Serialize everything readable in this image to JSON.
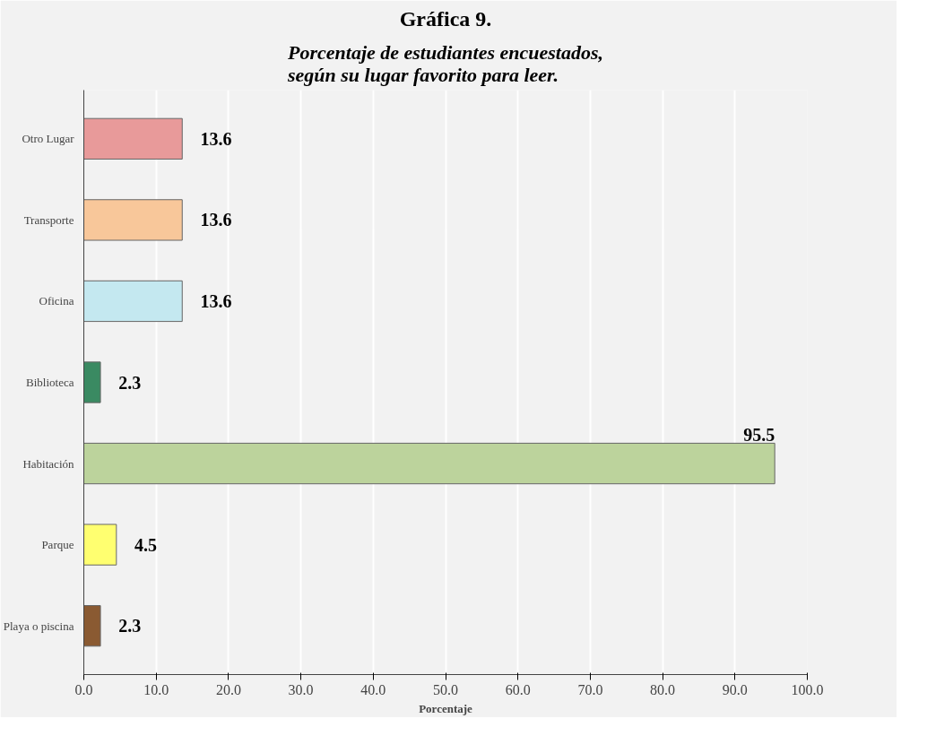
{
  "chart_data": {
    "type": "bar",
    "orientation": "horizontal",
    "title": "Gráfica 9.",
    "subtitle": "Porcentaje de estudiantes encuestados, según su lugar favorito para leer.",
    "xlabel": "Porcentaje",
    "categories": [
      "Otro Lugar",
      "Transporte",
      "Oficina",
      "Biblioteca",
      "Habitación",
      "Parque",
      "Playa o piscina"
    ],
    "values": [
      13.6,
      13.6,
      13.6,
      2.3,
      95.5,
      4.5,
      2.3
    ],
    "colors": [
      "#e89a9a",
      "#f8c79a",
      "#c4e8f0",
      "#3a8a62",
      "#bcd39c",
      "#ffff70",
      "#8a5a32"
    ],
    "xlim": [
      0,
      100
    ],
    "xticks": [
      {
        "value": 0,
        "label": "0.0"
      },
      {
        "value": 10,
        "label": "10.0"
      },
      {
        "value": 20,
        "label": "20.0"
      },
      {
        "value": 30,
        "label": "30.0"
      },
      {
        "value": 40,
        "label": "40.0"
      },
      {
        "value": 50,
        "label": "50.0"
      },
      {
        "value": 60,
        "label": "60.0"
      },
      {
        "value": 70,
        "label": "70.0"
      },
      {
        "value": 80,
        "label": "80.0"
      },
      {
        "value": 90,
        "label": "90.0"
      },
      {
        "value": 100,
        "label": "100.0"
      }
    ],
    "grid": "x",
    "data_labels": true
  }
}
